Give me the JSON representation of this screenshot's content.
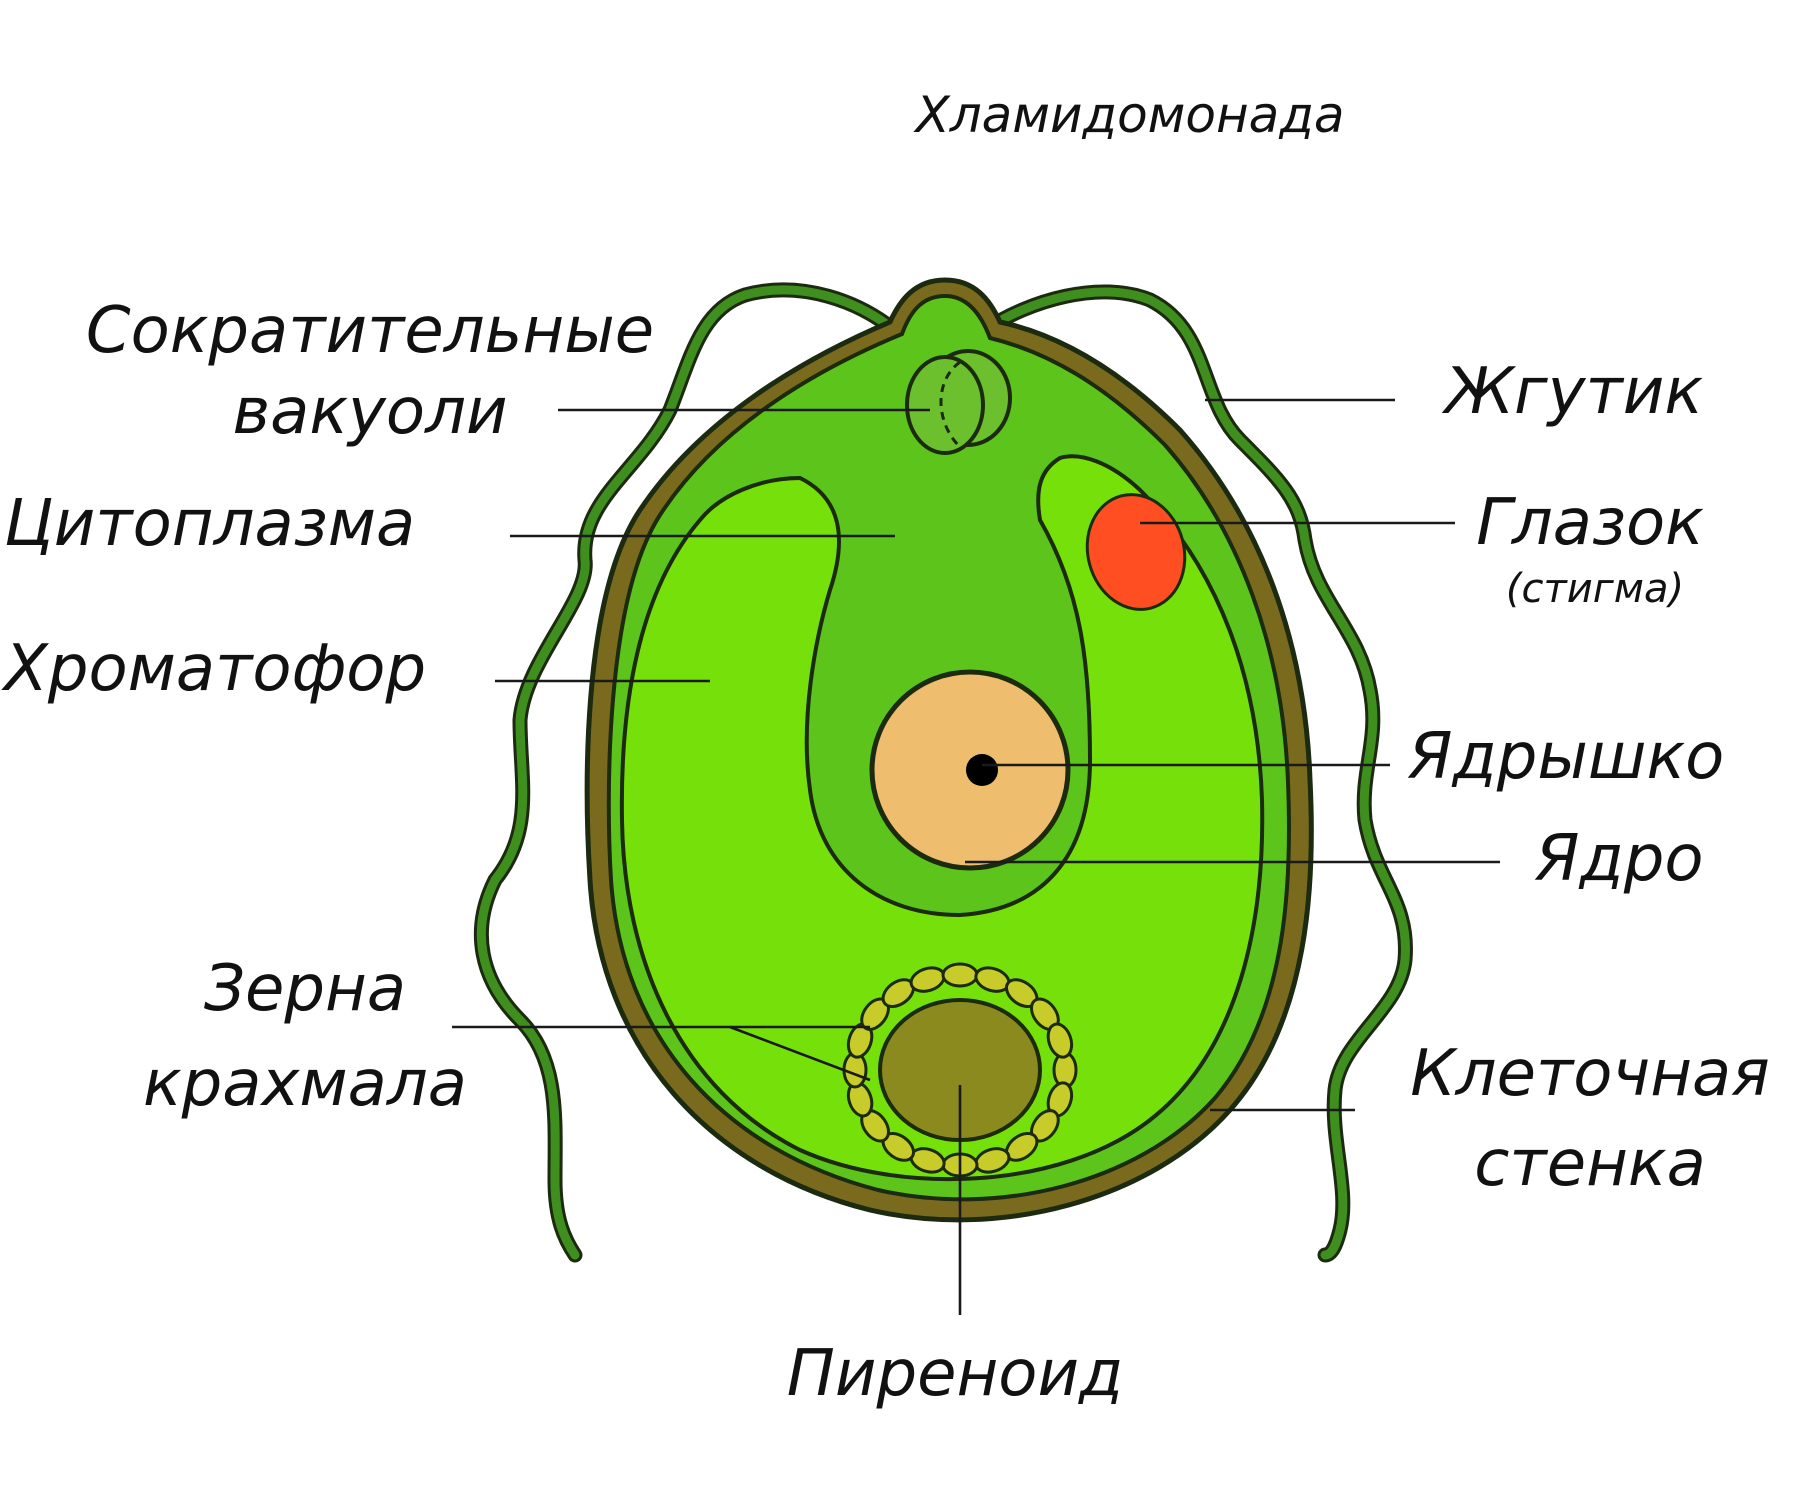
{
  "title": "Хламидомонада",
  "labels": {
    "contractile_vacuoles_1": "Сократительные",
    "contractile_vacuoles_2": "вакуоли",
    "cytoplasm": "Цитоплазма",
    "chromatophore": "Хроматофор",
    "starch_grains_1": "Зерна",
    "starch_grains_2": "крахмала",
    "flagellum": "Жгутик",
    "eyespot": "Глазок",
    "eyespot_note": "(стигма)",
    "nucleolus": "Ядрышко",
    "nucleus": "Ядро",
    "cell_wall_1": "Клеточная",
    "cell_wall_2": "стенка",
    "pyrenoid": "Пиреноид"
  },
  "colors": {
    "cell_wall": "#7a6a1e",
    "outline": "#1c2a10",
    "cytoplasm": "#5cc41a",
    "chromatophore": "#76e00a",
    "flagellum": "#3f8f1e",
    "eyespot": "#ff4f22",
    "nucleus": "#eebd6e",
    "nucleolus": "#000000",
    "pyrenoid": "#8a8a1e",
    "starch": "#c8cc2a",
    "vacuole": "#6cc02e"
  }
}
